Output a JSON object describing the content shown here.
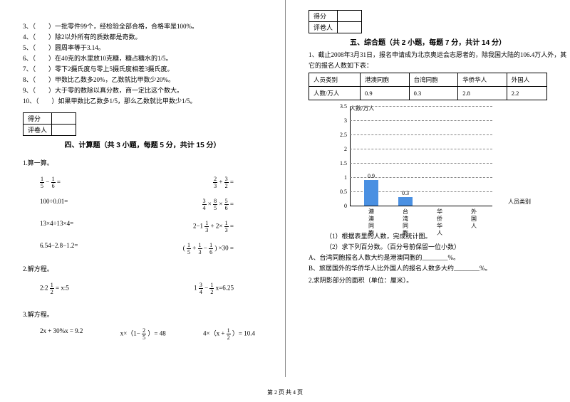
{
  "left": {
    "truefalse": [
      "3、（　　）一批零件99个，经检验全部合格，合格率是100%。",
      "4、（　　）除2以外所有的质数都是奇数。",
      "5、（　　）圆周率等于3.14。",
      "6、（　　）在40克的水里放10克糖，糖占糖水的1/5。",
      "7、（　　）零下2摄氏度与零上5摄氏度相差3摄氏度。",
      "8、（　　）甲数比乙数多20%，乙数就比甲数少20%。",
      "9、（　　）大于零的数除以真分数，商一定比这个数大。",
      "10、（　　）如果甲数比乙数多1/5，那么乙数就比甲数少1/5。"
    ],
    "score_labels": {
      "score": "得分",
      "grader": "评卷人"
    },
    "section4": "四、计算题（共 3 小题，每题 5 分，共计 15 分）",
    "q1": "1.算一算。",
    "f": {
      "a1": {
        "l": "1/5 − 1/6 =",
        "r": "2/3 + 3/2 ="
      },
      "a2": {
        "l": "100÷0.01=",
        "r": "3/4 × 8/5 × 5/6 ="
      },
      "a3": {
        "l": "13×4÷13×4=",
        "r": "2−1 1/3 + 2× 1/3 ="
      },
      "a4": {
        "l": "6.54−2.8−1.2=",
        "r": "( 1/5 + 1/3 − 1/6 ) ×30 ="
      }
    },
    "q2": "2.解方程。",
    "eq2": {
      "l": "2:2 1/2 = x:5",
      "r": "1 3/4 − 1/2 x=6.25"
    },
    "q3": "3.解方程。",
    "eq3": {
      "a": "2x + 30%x = 9.2",
      "b": "x×（1− 2/5 ）= 48",
      "c": "4×（x + 1/2 ）= 10.4"
    }
  },
  "right": {
    "section5": "五、综合题（共 2 小题，每题 7 分，共计 14 分）",
    "q1_intro_a": "1、截止2008年3月31日，报名申请成为北京奥运会志愿者的，除我国大陆的106.4万人外，其",
    "q1_intro_b": "它的报名人数如下表：",
    "table": {
      "headers": [
        "人员类别",
        "港澳同胞",
        "台湾同胞",
        "华侨华人",
        "外国人"
      ],
      "row": [
        "人数/万人",
        "0.9",
        "0.3",
        "2.8",
        "2.2"
      ]
    },
    "chart": {
      "y_title": "人数/万人",
      "x_title": "人员类别",
      "ymax": 3.5,
      "ymin": 0,
      "yticks": [
        0,
        0.5,
        1,
        1.5,
        2,
        2.5,
        3,
        3.5
      ],
      "categories": [
        "港澳同胞",
        "台湾同胞",
        "华侨华人",
        "外国人"
      ],
      "values": [
        0.9,
        0.3,
        null,
        null
      ],
      "bar_color": "#4a90e2",
      "grid_color": "#888888"
    },
    "sub": {
      "a": "（1）根据表里的人数，完成统计图。",
      "b": "（2）求下列百分数。（百分号前保留一位小数）",
      "c": "A、台湾同胞报名人数大约是港澳同胞的________%。",
      "d": "B、旅居国外的华侨华人比外国人的报名人数多大约________%。"
    },
    "q2": "2.求阴影部分的面积（单位：厘米）。"
  },
  "footer": "第 2 页 共 4 页"
}
